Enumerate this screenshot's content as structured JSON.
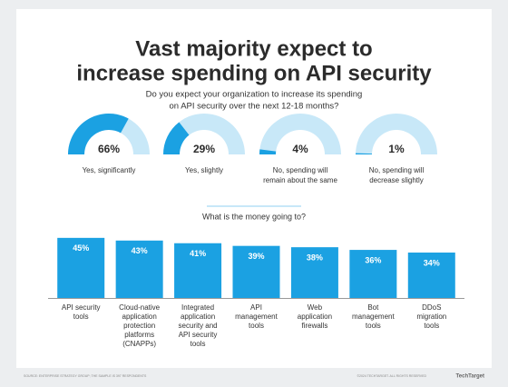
{
  "title": [
    "Vast majority expect to",
    "increase spending on API security"
  ],
  "subtitle": [
    "Do you expect your organization to increase its spending",
    "on API security over the next 12-18 months?"
  ],
  "chart_data": [
    {
      "type": "gauge",
      "color": "#1ba1e2",
      "track_color": "#c8e8f8",
      "categories": [
        [
          "Yes, significantly"
        ],
        [
          "Yes, slightly"
        ],
        [
          "No, spending will",
          "remain about the same"
        ],
        [
          "No, spending will",
          "decrease slightly"
        ]
      ],
      "values": [
        66,
        29,
        4,
        1
      ],
      "value_labels": [
        "66%",
        "29%",
        "4%",
        "1%"
      ]
    },
    {
      "type": "bar",
      "title": "What is the money going to?",
      "color": "#1ba1e2",
      "categories": [
        [
          "API security",
          "tools"
        ],
        [
          "Cloud-native",
          "application",
          "protection",
          "platforms",
          "(CNAPPs)"
        ],
        [
          "Integrated",
          "application",
          "security and",
          "API security",
          "tools"
        ],
        [
          "API",
          "management",
          "tools"
        ],
        [
          "Web",
          "application",
          "firewalls"
        ],
        [
          "Bot",
          "management",
          "tools"
        ],
        [
          "DDoS",
          "migration",
          "tools"
        ]
      ],
      "values": [
        45,
        43,
        41,
        39,
        38,
        36,
        34
      ],
      "value_labels": [
        "45%",
        "43%",
        "41%",
        "39%",
        "38%",
        "36%",
        "34%"
      ]
    }
  ],
  "footer": {
    "source": "SOURCE: ENTERPRISE STRATEGY GROUP; THE SAMPLE IS 397 RESPONDENTS",
    "copyright": "©2024 TECHTARGET. ALL RIGHTS RESERVED",
    "logo": "TechTarget"
  }
}
